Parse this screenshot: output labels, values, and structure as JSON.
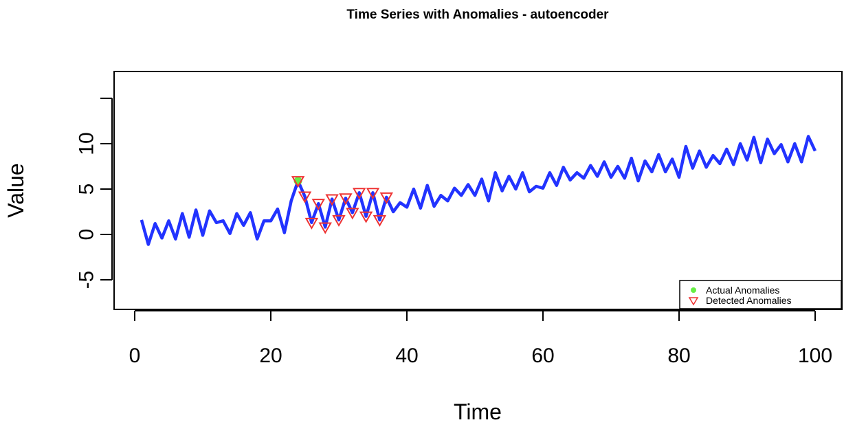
{
  "chart_data": {
    "type": "line",
    "title": "Time Series with Anomalies - autoencoder",
    "xlabel": "Time",
    "ylabel": "Value",
    "xlim": [
      0,
      100
    ],
    "ylim": [
      -8,
      15
    ],
    "x_ticks": [
      0,
      20,
      40,
      60,
      80,
      100
    ],
    "x_tick_labels": [
      "0",
      "20",
      "40",
      "60",
      "80",
      "100"
    ],
    "y_ticks": [
      -5,
      0,
      5,
      10,
      15
    ],
    "y_tick_labels": [
      "-5",
      "0",
      "5",
      "10",
      ""
    ],
    "grid": false,
    "legend_position": "bottom-right",
    "series": [
      {
        "x": [
          1,
          2,
          3,
          4,
          5,
          6,
          7,
          8,
          9,
          10,
          11,
          12,
          13,
          14,
          15,
          16,
          17,
          18,
          19,
          20,
          21,
          22,
          23,
          24,
          25,
          26,
          27,
          28,
          29,
          30,
          31,
          32,
          33,
          34,
          35,
          36,
          37,
          38,
          39,
          40,
          41,
          42,
          43,
          44,
          45,
          46,
          47,
          48,
          49,
          50,
          51,
          52,
          53,
          54,
          55,
          56,
          57,
          58,
          59,
          60,
          61,
          62,
          63,
          64,
          65,
          66,
          67,
          68,
          69,
          70,
          71,
          72,
          73,
          74,
          75,
          76,
          77,
          78,
          79,
          80,
          81,
          82,
          83,
          84,
          85,
          86,
          87,
          88,
          89,
          90,
          91,
          92,
          93,
          94,
          95,
          96,
          97,
          98,
          99,
          100
        ],
        "values": [
          1.6,
          -1.1,
          1.2,
          -0.4,
          1.5,
          -0.5,
          2.3,
          -0.3,
          2.7,
          -0.1,
          2.6,
          1.3,
          1.5,
          0.1,
          2.3,
          1.0,
          2.4,
          -0.5,
          1.5,
          1.5,
          2.8,
          0.2,
          3.7,
          5.9,
          4.2,
          1.3,
          3.4,
          0.8,
          3.9,
          1.6,
          4.0,
          2.4,
          4.6,
          2.0,
          4.6,
          1.6,
          4.1,
          2.5,
          3.5,
          3.0,
          5.0,
          2.9,
          5.4,
          3.1,
          4.3,
          3.7,
          5.1,
          4.3,
          5.5,
          4.3,
          6.1,
          3.7,
          6.8,
          4.8,
          6.4,
          5.0,
          6.8,
          4.7,
          5.3,
          5.1,
          6.8,
          5.4,
          7.4,
          6.0,
          6.8,
          6.2,
          7.6,
          6.4,
          8.0,
          6.3,
          7.5,
          6.2,
          8.4,
          5.9,
          8.1,
          6.9,
          8.8,
          6.9,
          8.3,
          6.3,
          9.7,
          7.3,
          9.2,
          7.4,
          8.7,
          7.8,
          9.4,
          7.7,
          10.0,
          8.2,
          10.7,
          7.9,
          10.5,
          8.9,
          9.9,
          8.0,
          10.0,
          8.0,
          10.8,
          9.2
        ],
        "color": "#2233ff"
      }
    ],
    "actual_anomalies": {
      "name": "Actual Anomalies",
      "color": "#66ee44",
      "x": [
        24
      ],
      "y": [
        5.9
      ]
    },
    "detected_anomalies": {
      "name": "Detected Anomalies",
      "color": "#ee3333",
      "x": [
        24,
        25,
        26,
        27,
        28,
        29,
        30,
        31,
        32,
        33,
        34,
        35,
        36,
        37
      ],
      "y": [
        5.9,
        4.2,
        1.3,
        3.4,
        0.8,
        3.9,
        1.6,
        4.0,
        2.4,
        4.6,
        2.0,
        4.6,
        1.6,
        4.1
      ]
    }
  }
}
